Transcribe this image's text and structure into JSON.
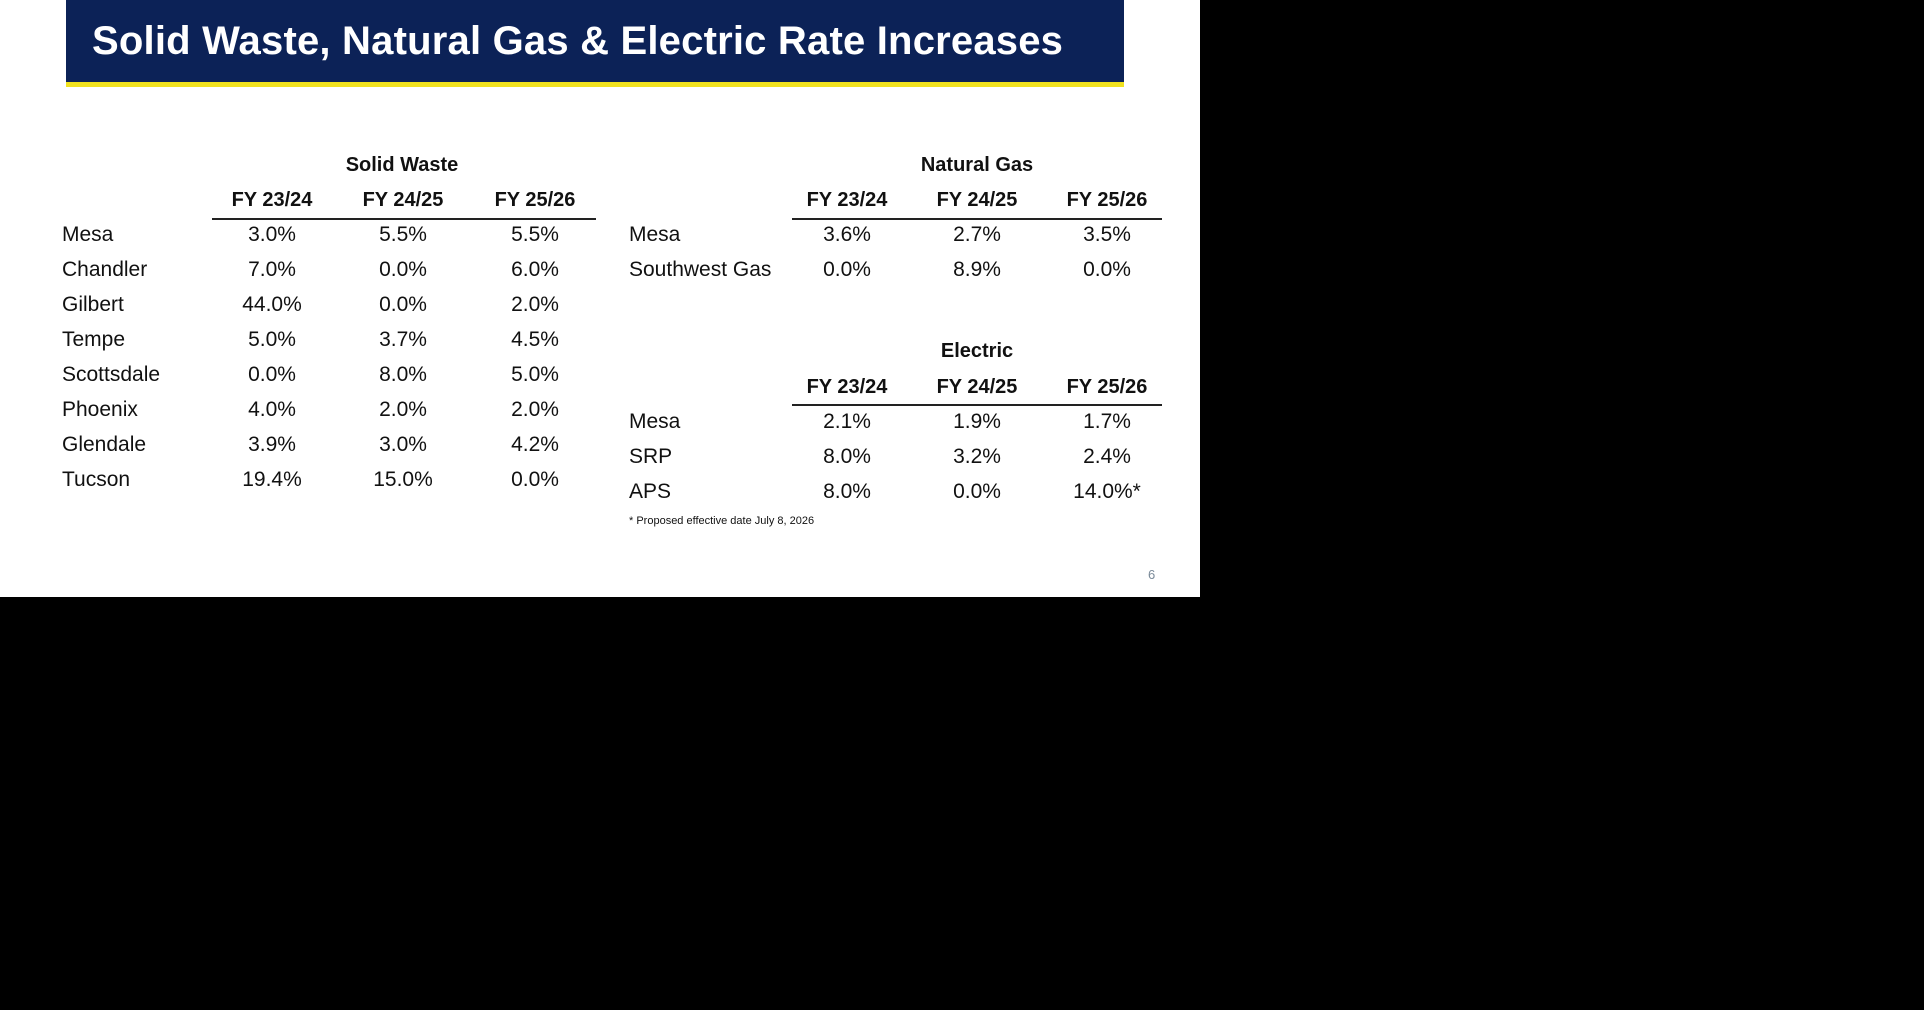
{
  "title": "Solid Waste, Natural Gas & Electric Rate Increases",
  "colors": {
    "title_bg": "#0c2257",
    "title_underline": "#f1e21f",
    "title_text": "#ffffff"
  },
  "solid_waste": {
    "heading": "Solid Waste",
    "columns": [
      "FY 23/24",
      "FY 24/25",
      "FY 25/26"
    ],
    "rows": [
      {
        "label": "Mesa",
        "values": [
          "3.0%",
          "5.5%",
          "5.5%"
        ]
      },
      {
        "label": "Chandler",
        "values": [
          "7.0%",
          "0.0%",
          "6.0%"
        ]
      },
      {
        "label": "Gilbert",
        "values": [
          "44.0%",
          "0.0%",
          "2.0%"
        ]
      },
      {
        "label": "Tempe",
        "values": [
          "5.0%",
          "3.7%",
          "4.5%"
        ]
      },
      {
        "label": "Scottsdale",
        "values": [
          "0.0%",
          "8.0%",
          "5.0%"
        ]
      },
      {
        "label": "Phoenix",
        "values": [
          "4.0%",
          "2.0%",
          "2.0%"
        ]
      },
      {
        "label": "Glendale",
        "values": [
          "3.9%",
          "3.0%",
          "4.2%"
        ]
      },
      {
        "label": "Tucson",
        "values": [
          "19.4%",
          "15.0%",
          "0.0%"
        ]
      }
    ]
  },
  "natural_gas": {
    "heading": "Natural Gas",
    "columns": [
      "FY 23/24",
      "FY 24/25",
      "FY 25/26"
    ],
    "rows": [
      {
        "label": "Mesa",
        "values": [
          "3.6%",
          "2.7%",
          "3.5%"
        ]
      },
      {
        "label": "Southwest Gas",
        "values": [
          "0.0%",
          "8.9%",
          "0.0%"
        ]
      }
    ]
  },
  "electric": {
    "heading": "Electric",
    "columns": [
      "FY 23/24",
      "FY 24/25",
      "FY 25/26"
    ],
    "rows": [
      {
        "label": "Mesa",
        "values": [
          "2.1%",
          "1.9%",
          "1.7%"
        ]
      },
      {
        "label": "SRP",
        "values": [
          "8.0%",
          "3.2%",
          "2.4%"
        ]
      },
      {
        "label": "APS",
        "values": [
          "8.0%",
          "0.0%",
          "14.0%*"
        ]
      }
    ]
  },
  "footnote": "* Proposed effective date July 8, 2026",
  "page_number": "6"
}
